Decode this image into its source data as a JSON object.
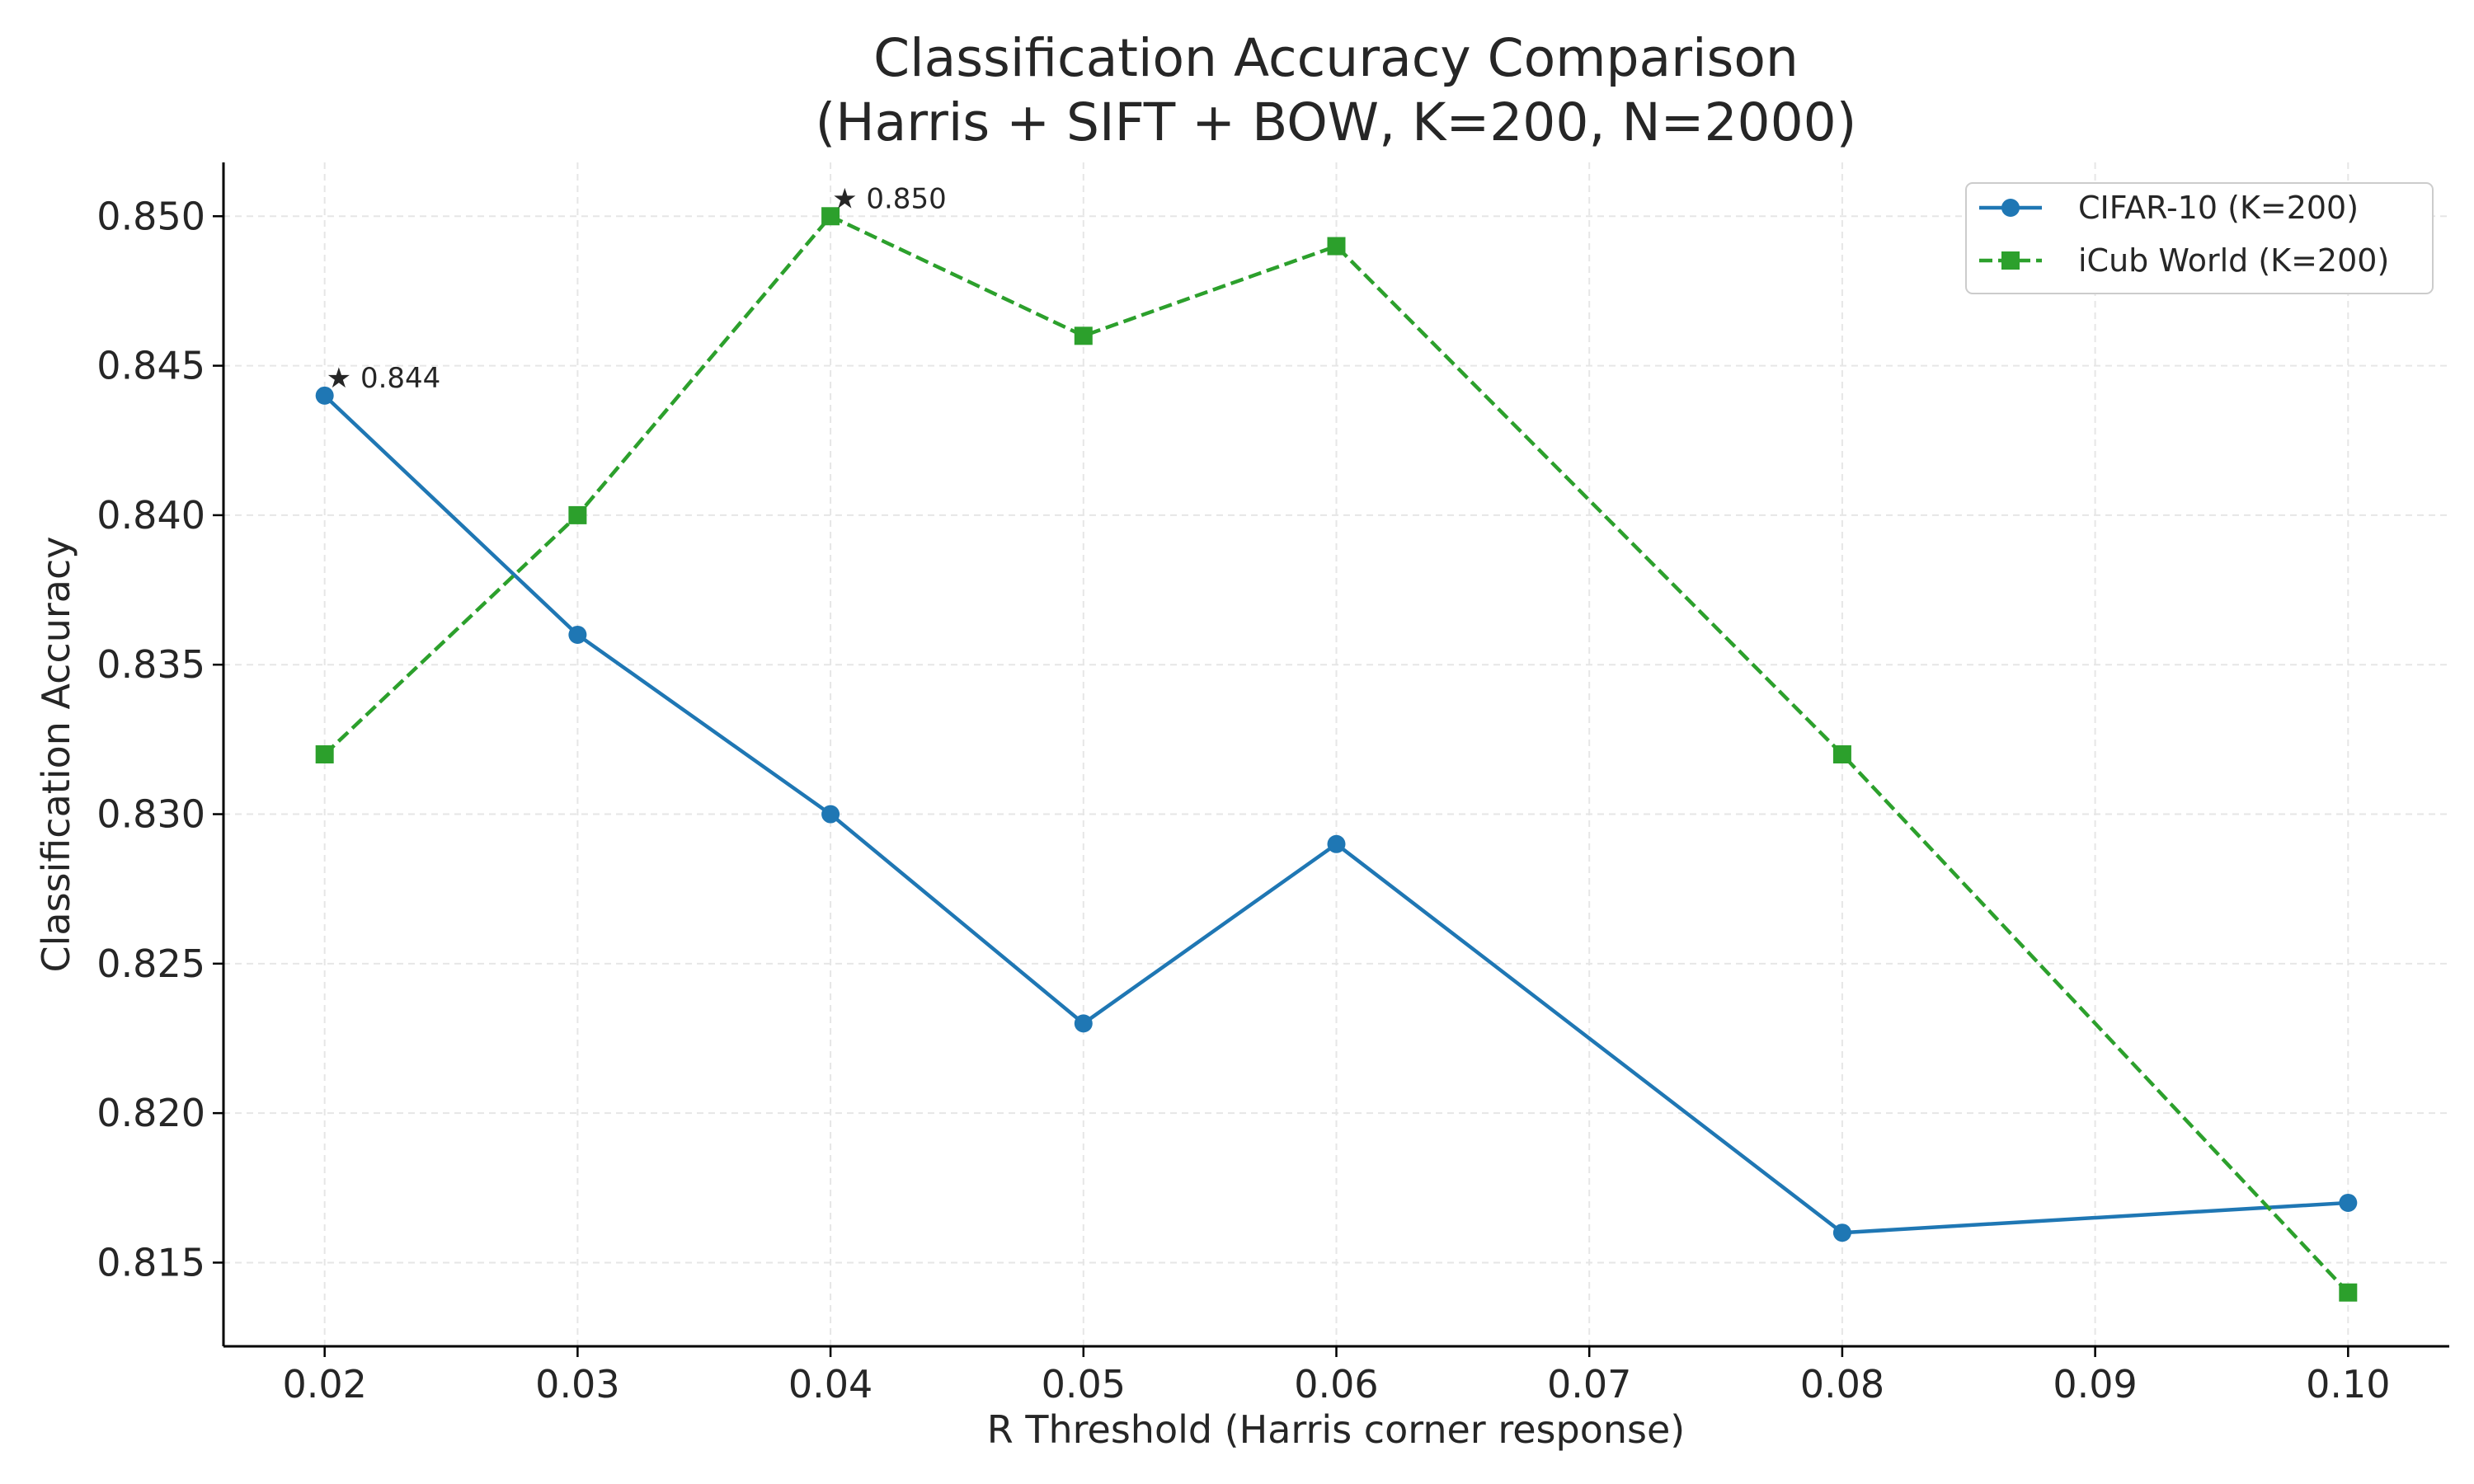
{
  "chart_data": {
    "type": "line",
    "title_line1": "Classification Accuracy Comparison",
    "title_line2": "(Harris + SIFT + BOW, K=200, N=2000)",
    "xlabel": "R Threshold (Harris corner response)",
    "ylabel": "Classification Accuracy",
    "xlim": [
      0.016,
      0.104
    ],
    "ylim": [
      0.8122,
      0.8518
    ],
    "xticks": [
      0.02,
      0.03,
      0.04,
      0.05,
      0.06,
      0.07,
      0.08,
      0.09,
      0.1
    ],
    "xtick_labels": [
      "0.02",
      "0.03",
      "0.04",
      "0.05",
      "0.06",
      "0.07",
      "0.08",
      "0.09",
      "0.10"
    ],
    "yticks": [
      0.815,
      0.82,
      0.825,
      0.83,
      0.835,
      0.84,
      0.845,
      0.85
    ],
    "ytick_labels": [
      "0.815",
      "0.820",
      "0.825",
      "0.830",
      "0.835",
      "0.840",
      "0.845",
      "0.850"
    ],
    "grid": true,
    "legend_position": "top-right",
    "x": [
      0.02,
      0.03,
      0.04,
      0.05,
      0.06,
      0.08,
      0.1
    ],
    "series": [
      {
        "name": "CIFAR-10 (K=200)",
        "values": [
          0.844,
          0.836,
          0.83,
          0.823,
          0.829,
          0.816,
          0.817
        ],
        "color": "#1f77b4",
        "marker": "circle",
        "linestyle": "solid"
      },
      {
        "name": "iCub World (K=200)",
        "values": [
          0.832,
          0.84,
          0.85,
          0.846,
          0.849,
          0.832,
          0.814
        ],
        "color": "#2ca02c",
        "marker": "square",
        "linestyle": "dashed"
      }
    ],
    "annotations": [
      {
        "text": "★ 0.844",
        "x": 0.02,
        "y": 0.844,
        "series": 0
      },
      {
        "text": "★ 0.850",
        "x": 0.04,
        "y": 0.85,
        "series": 1
      }
    ]
  }
}
